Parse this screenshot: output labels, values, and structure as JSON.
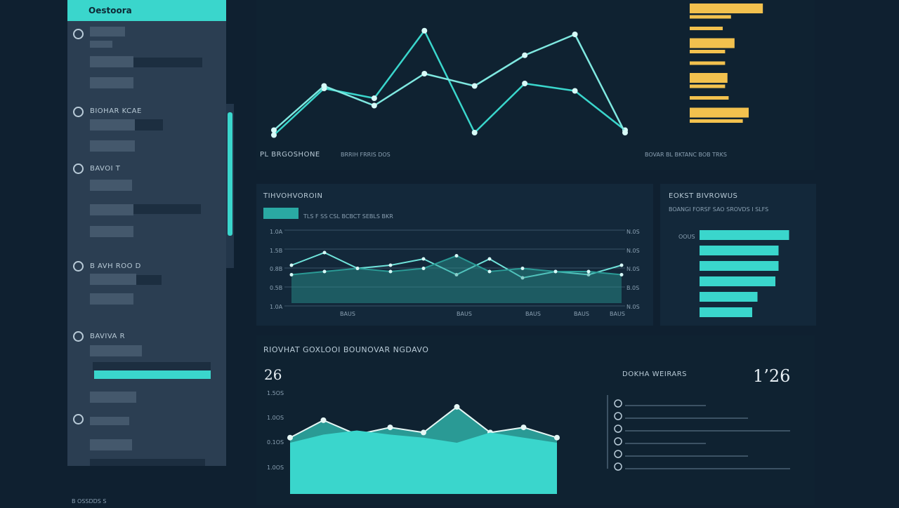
{
  "sidebar": {
    "title": "Oestoora",
    "groups": [
      {
        "heading": "",
        "rows": [
          "",
          "",
          ""
        ]
      },
      {
        "heading": "BIOHAR KCAE",
        "rows": [
          "",
          "",
          ""
        ]
      },
      {
        "heading": "BAVOI T",
        "rows": [
          "",
          "",
          ""
        ]
      },
      {
        "heading": "B AVH ROO D",
        "rows": [
          "",
          ""
        ]
      },
      {
        "heading": "BAVIVA R",
        "rows": [
          "",
          "",
          ""
        ]
      },
      {
        "heading": "",
        "rows": [
          "",
          ""
        ]
      }
    ],
    "footer": "B OSSDDS S"
  },
  "top_chart": {
    "label_left": "PL BRGOSHONE",
    "label_mid": "BRRIH FRRIS DOS",
    "label_right": "BOVAR BL BKTANC BOB TRKS",
    "colors": {
      "line": "#3ad6cc",
      "bar": "#f2c14e"
    }
  },
  "mid_chart": {
    "title": "TIHVOHVOROIN",
    "subtitle": "TLS F SS CSL BCBCT SEBLS BKR",
    "y_labels": [
      "1.0A",
      "1.5B",
      "0.8B",
      "0.5B",
      "1.0A"
    ],
    "y_labels_right": [
      "N.0S",
      "N.0S",
      "N.0S",
      "B.0S",
      "N.0S"
    ],
    "x_labels": [
      "BAUS",
      "BAUS",
      "BAUS",
      "BAUS",
      "BAUS"
    ]
  },
  "side_bars": {
    "title": "EOKST BIVROWUS",
    "subtitle": "BOANGI FORSF SAO SROVDS I SLFS",
    "row_label": "OOUS"
  },
  "bottom_chart": {
    "title": "RIOVHAT GOXLOOI BOUNOVAR NGDAVO",
    "big_value": "26",
    "big_right": "1’26",
    "list_title": "DOKHA WEIRARS",
    "y_labels": [
      "1.5OS",
      "1.0OS",
      "0.1OS",
      "1.0OS"
    ],
    "colors": {
      "area_dark": "#2a9a95",
      "area_light": "#3ad6cc"
    }
  },
  "chart_data": [
    {
      "type": "line",
      "series": [
        {
          "values": [
            1.0,
            4.8,
            4.0,
            9.5,
            1.2,
            5.2,
            4.6,
            1.4
          ]
        },
        {
          "values": [
            1.4,
            5.0,
            3.4,
            6.0,
            5.0,
            7.5,
            9.2,
            1.2
          ]
        }
      ]
    },
    {
      "type": "bar",
      "categories": [
        "",
        "",
        "",
        "",
        "",
        "",
        "",
        "",
        "",
        "",
        ""
      ],
      "values": [
        0.62,
        0.35,
        0.28,
        0.38,
        0.3,
        0.3,
        0.32,
        0.3,
        0.33,
        0.5,
        0.45
      ]
    },
    {
      "type": "line",
      "series": [
        {
          "values": [
            0.6,
            0.8,
            0.55,
            0.6,
            0.7,
            0.45,
            0.7,
            0.4,
            0.5,
            0.45,
            0.6
          ]
        },
        {
          "values": [
            0.45,
            0.5,
            0.55,
            0.5,
            0.55,
            0.75,
            0.5,
            0.55,
            0.5,
            0.5,
            0.45
          ]
        }
      ]
    },
    {
      "type": "bar",
      "categories": [
        "",
        "",
        "",
        "",
        "",
        ""
      ],
      "values": [
        0.85,
        0.75,
        0.75,
        0.72,
        0.55,
        0.5
      ]
    },
    {
      "type": "area",
      "series": [
        {
          "values": [
            0.55,
            0.72,
            0.58,
            0.65,
            0.6,
            0.85,
            0.6,
            0.65,
            0.55
          ]
        },
        {
          "values": [
            0.5,
            0.58,
            0.62,
            0.58,
            0.55,
            0.5,
            0.6,
            0.55,
            0.5
          ]
        }
      ]
    }
  ]
}
